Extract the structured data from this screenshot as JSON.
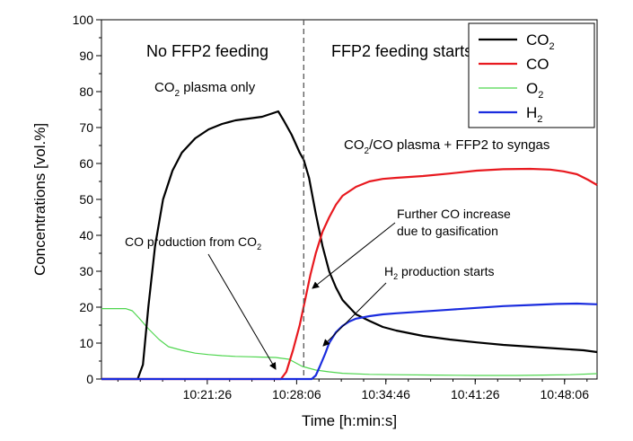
{
  "chart_data": {
    "type": "line",
    "title": "",
    "xlabel": "Time [h:min:s]",
    "ylabel": "Concentrations [vol.%]",
    "xlim_minutes": [
      0,
      37
    ],
    "ylim": [
      0,
      100
    ],
    "yticks": [
      0,
      10,
      20,
      30,
      40,
      50,
      60,
      70,
      80,
      90,
      100
    ],
    "xticks": [
      {
        "value": 7.9,
        "label": "10:21:26"
      },
      {
        "value": 14.57,
        "label": "10:28:06"
      },
      {
        "value": 21.23,
        "label": "10:34:46"
      },
      {
        "value": 27.9,
        "label": "10:41:26"
      },
      {
        "value": 34.57,
        "label": "10:48:06"
      }
    ],
    "feeding_start_minute": 15.1,
    "series": [
      {
        "name": "CO2",
        "label_main": "CO",
        "label_sub": "2",
        "color": "#000000",
        "points": [
          [
            0,
            0
          ],
          [
            2.7,
            0
          ],
          [
            3.1,
            4
          ],
          [
            3.5,
            20
          ],
          [
            4.0,
            37
          ],
          [
            4.6,
            50
          ],
          [
            5.3,
            58
          ],
          [
            6.0,
            63
          ],
          [
            7.0,
            67
          ],
          [
            8.0,
            69.5
          ],
          [
            9.0,
            71
          ],
          [
            10.0,
            72
          ],
          [
            11.0,
            72.5
          ],
          [
            12.0,
            73
          ],
          [
            12.8,
            74
          ],
          [
            13.2,
            74.5
          ],
          [
            13.6,
            72
          ],
          [
            14.2,
            68
          ],
          [
            14.8,
            63
          ],
          [
            15.1,
            61
          ],
          [
            15.5,
            56
          ],
          [
            16.0,
            46
          ],
          [
            16.5,
            37
          ],
          [
            17.0,
            30
          ],
          [
            17.5,
            25.5
          ],
          [
            18.0,
            22
          ],
          [
            19.0,
            18
          ],
          [
            20.0,
            16.2
          ],
          [
            21.0,
            14.5
          ],
          [
            22.0,
            13.5
          ],
          [
            24.0,
            12
          ],
          [
            26.0,
            11
          ],
          [
            28.0,
            10.2
          ],
          [
            30.0,
            9.5
          ],
          [
            32.0,
            9
          ],
          [
            34.0,
            8.5
          ],
          [
            36.0,
            8
          ],
          [
            37.0,
            7.5
          ]
        ]
      },
      {
        "name": "CO",
        "label_main": "CO",
        "label_sub": "",
        "color": "#e8191f",
        "points": [
          [
            0,
            0
          ],
          [
            13.4,
            0
          ],
          [
            13.8,
            2
          ],
          [
            14.3,
            8
          ],
          [
            14.8,
            15
          ],
          [
            15.2,
            22
          ],
          [
            15.6,
            29
          ],
          [
            16.0,
            35
          ],
          [
            16.5,
            41
          ],
          [
            17.0,
            45
          ],
          [
            17.5,
            48.5
          ],
          [
            18.0,
            51
          ],
          [
            19.0,
            53.5
          ],
          [
            20.0,
            55
          ],
          [
            21.0,
            55.7
          ],
          [
            22.0,
            56
          ],
          [
            24.0,
            56.5
          ],
          [
            26.0,
            57.2
          ],
          [
            28.0,
            58
          ],
          [
            30.0,
            58.4
          ],
          [
            32.0,
            58.5
          ],
          [
            33.5,
            58.3
          ],
          [
            34.5,
            57.8
          ],
          [
            35.5,
            57
          ],
          [
            36.3,
            55.5
          ],
          [
            37.0,
            54
          ]
        ]
      },
      {
        "name": "O2",
        "label_main": "O",
        "label_sub": "2",
        "color": "#4fd64f",
        "points": [
          [
            0,
            19.6
          ],
          [
            1.0,
            19.6
          ],
          [
            1.8,
            19.6
          ],
          [
            2.3,
            19
          ],
          [
            2.8,
            17
          ],
          [
            3.5,
            14
          ],
          [
            4.3,
            11
          ],
          [
            5.0,
            9
          ],
          [
            6.0,
            8
          ],
          [
            7.0,
            7.2
          ],
          [
            8.0,
            6.8
          ],
          [
            9.0,
            6.5
          ],
          [
            10.0,
            6.3
          ],
          [
            11.0,
            6.2
          ],
          [
            12.0,
            6.1
          ],
          [
            13.0,
            6
          ],
          [
            14.0,
            5.5
          ],
          [
            14.5,
            4.5
          ],
          [
            15.0,
            3.5
          ],
          [
            16.0,
            2.5
          ],
          [
            17.0,
            2
          ],
          [
            18.0,
            1.6
          ],
          [
            20.0,
            1.3
          ],
          [
            22.0,
            1.2
          ],
          [
            25.0,
            1.1
          ],
          [
            28.0,
            1.0
          ],
          [
            31.0,
            1.0
          ],
          [
            33.0,
            1.1
          ],
          [
            35.0,
            1.2
          ],
          [
            37.0,
            1.5
          ]
        ]
      },
      {
        "name": "H2",
        "label_main": "H",
        "label_sub": "2",
        "color": "#1a2cde",
        "points": [
          [
            0,
            0
          ],
          [
            15.7,
            0
          ],
          [
            16.0,
            1
          ],
          [
            16.3,
            3.5
          ],
          [
            16.7,
            7
          ],
          [
            17.0,
            10
          ],
          [
            17.5,
            13
          ],
          [
            18.0,
            14.8
          ],
          [
            18.5,
            16
          ],
          [
            19.0,
            16.8
          ],
          [
            20.0,
            17.5
          ],
          [
            21.0,
            18
          ],
          [
            22.0,
            18.3
          ],
          [
            24.0,
            18.8
          ],
          [
            26.0,
            19.3
          ],
          [
            28.0,
            19.8
          ],
          [
            30.0,
            20.3
          ],
          [
            32.0,
            20.6
          ],
          [
            34.0,
            20.9
          ],
          [
            35.5,
            21
          ],
          [
            37.0,
            20.8
          ]
        ]
      }
    ],
    "annotations": {
      "no_feeding": "No FFP2 feeding",
      "feeding_starts": "FFP2 feeding starts",
      "plasma_only_main": "CO",
      "plasma_only_sub": "2",
      "plasma_only_rest": " plasma only",
      "syngas_main": "CO",
      "syngas_sub": "2",
      "syngas_rest": "/CO plasma + FFP2 to syngas",
      "further_line1": "Further CO increase",
      "further_line2": "due to gasification",
      "co_prod_main": "CO production from CO",
      "co_prod_sub": "2",
      "h2_prod_main": "H",
      "h2_prod_sub": "2",
      "h2_prod_rest": " production starts"
    },
    "legend_position": "top-right"
  }
}
